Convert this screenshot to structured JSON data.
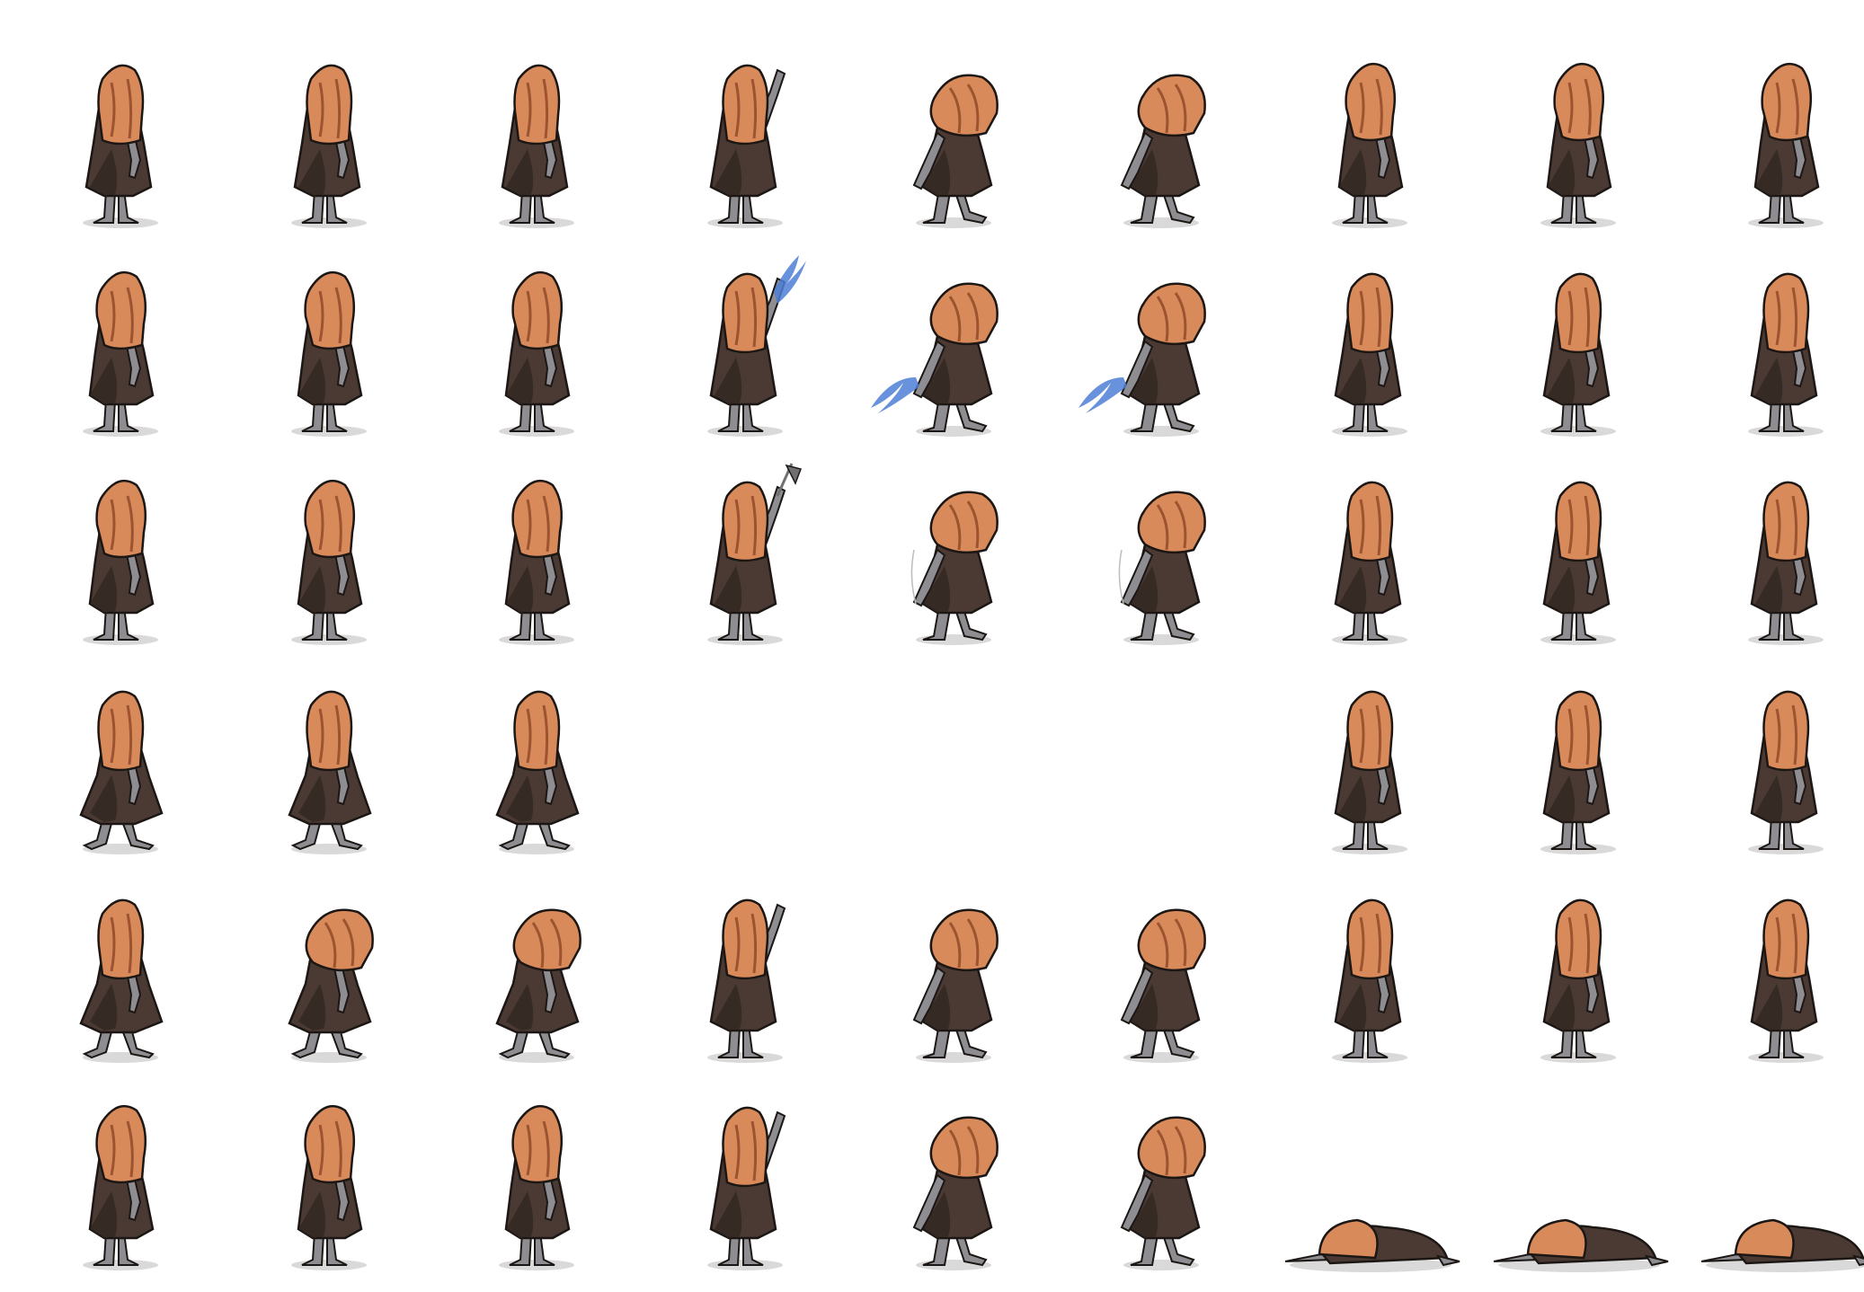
{
  "sheet": {
    "background": "#ffffff",
    "columns": 9,
    "rows": 6,
    "character": {
      "hair_color": "#d98a5a",
      "hair_shade": "#9c5330",
      "robe_color": "#4a3a33",
      "robe_shade": "#2e231f",
      "skin_color": "#8e8e92",
      "outline": "#1c1714",
      "shadow": "#cfcfcf",
      "weapon_magic_color": "#4f7fd6",
      "weapon_metal_color": "#707070"
    },
    "frames": [
      [
        "stand",
        "stand",
        "stand",
        "raise",
        "swing",
        "swing",
        "turn",
        "turn",
        "turn"
      ],
      [
        "turn",
        "turn",
        "turn",
        "raise-magic",
        "swing-magic",
        "swing-magic",
        "stand",
        "stand",
        "stand"
      ],
      [
        "turn",
        "turn",
        "turn",
        "raise-axe",
        "swing-weapon",
        "swing-weapon",
        "stand",
        "stand",
        "stand"
      ],
      [
        "walk",
        "walk",
        "walk",
        "empty",
        "empty",
        "empty",
        "stand",
        "stand",
        "stand"
      ],
      [
        "walk",
        "walk-lean",
        "walk-lean",
        "raise",
        "swing",
        "swing",
        "stand",
        "stand",
        "stand"
      ],
      [
        "turn",
        "turn",
        "turn",
        "raise",
        "swing",
        "swing",
        "down",
        "down",
        "down"
      ]
    ]
  }
}
